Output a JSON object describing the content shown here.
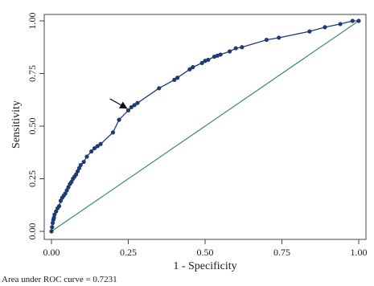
{
  "chart_data": {
    "type": "line",
    "title": "",
    "xlabel": "1 - Specificity",
    "ylabel": "Sensitivity",
    "xlim": [
      0,
      1
    ],
    "ylim": [
      0,
      1
    ],
    "x_ticks": [
      "0.00",
      "0.25",
      "0.50",
      "0.75",
      "1.00"
    ],
    "y_ticks": [
      "0.00",
      "0.25",
      "0.50",
      "0.75",
      "1.00"
    ],
    "grid": false,
    "legend": "none",
    "series": [
      {
        "role": "roc-curve",
        "color": "#1f3b73",
        "marker": "filled-circle",
        "points": [
          [
            0.0,
            0.0
          ],
          [
            0.002,
            0.02
          ],
          [
            0.004,
            0.04
          ],
          [
            0.006,
            0.055
          ],
          [
            0.008,
            0.065
          ],
          [
            0.01,
            0.08
          ],
          [
            0.015,
            0.095
          ],
          [
            0.02,
            0.11
          ],
          [
            0.025,
            0.12
          ],
          [
            0.03,
            0.145
          ],
          [
            0.035,
            0.16
          ],
          [
            0.04,
            0.17
          ],
          [
            0.045,
            0.18
          ],
          [
            0.05,
            0.195
          ],
          [
            0.055,
            0.21
          ],
          [
            0.06,
            0.225
          ],
          [
            0.065,
            0.235
          ],
          [
            0.07,
            0.25
          ],
          [
            0.075,
            0.26
          ],
          [
            0.08,
            0.27
          ],
          [
            0.085,
            0.285
          ],
          [
            0.09,
            0.3
          ],
          [
            0.095,
            0.315
          ],
          [
            0.105,
            0.33
          ],
          [
            0.115,
            0.355
          ],
          [
            0.13,
            0.38
          ],
          [
            0.14,
            0.395
          ],
          [
            0.15,
            0.405
          ],
          [
            0.16,
            0.415
          ],
          [
            0.2,
            0.47
          ],
          [
            0.22,
            0.53
          ],
          [
            0.25,
            0.575
          ],
          [
            0.26,
            0.59
          ],
          [
            0.27,
            0.6
          ],
          [
            0.28,
            0.61
          ],
          [
            0.35,
            0.68
          ],
          [
            0.4,
            0.72
          ],
          [
            0.41,
            0.73
          ],
          [
            0.45,
            0.77
          ],
          [
            0.46,
            0.78
          ],
          [
            0.49,
            0.8
          ],
          [
            0.5,
            0.81
          ],
          [
            0.51,
            0.815
          ],
          [
            0.53,
            0.83
          ],
          [
            0.54,
            0.835
          ],
          [
            0.55,
            0.84
          ],
          [
            0.58,
            0.855
          ],
          [
            0.6,
            0.87
          ],
          [
            0.62,
            0.875
          ],
          [
            0.7,
            0.91
          ],
          [
            0.74,
            0.92
          ],
          [
            0.84,
            0.95
          ],
          [
            0.89,
            0.97
          ],
          [
            0.94,
            0.985
          ],
          [
            0.98,
            1.0
          ],
          [
            1.0,
            1.0
          ]
        ]
      },
      {
        "role": "reference-line",
        "color": "#3a8a6a",
        "points": [
          [
            0,
            0
          ],
          [
            1,
            1
          ]
        ]
      }
    ],
    "annotations": [
      {
        "type": "arrow",
        "from": [
          0.19,
          0.63
        ],
        "to": [
          0.245,
          0.585
        ]
      }
    ],
    "footnote": "Area under ROC curve = 0.7231"
  }
}
